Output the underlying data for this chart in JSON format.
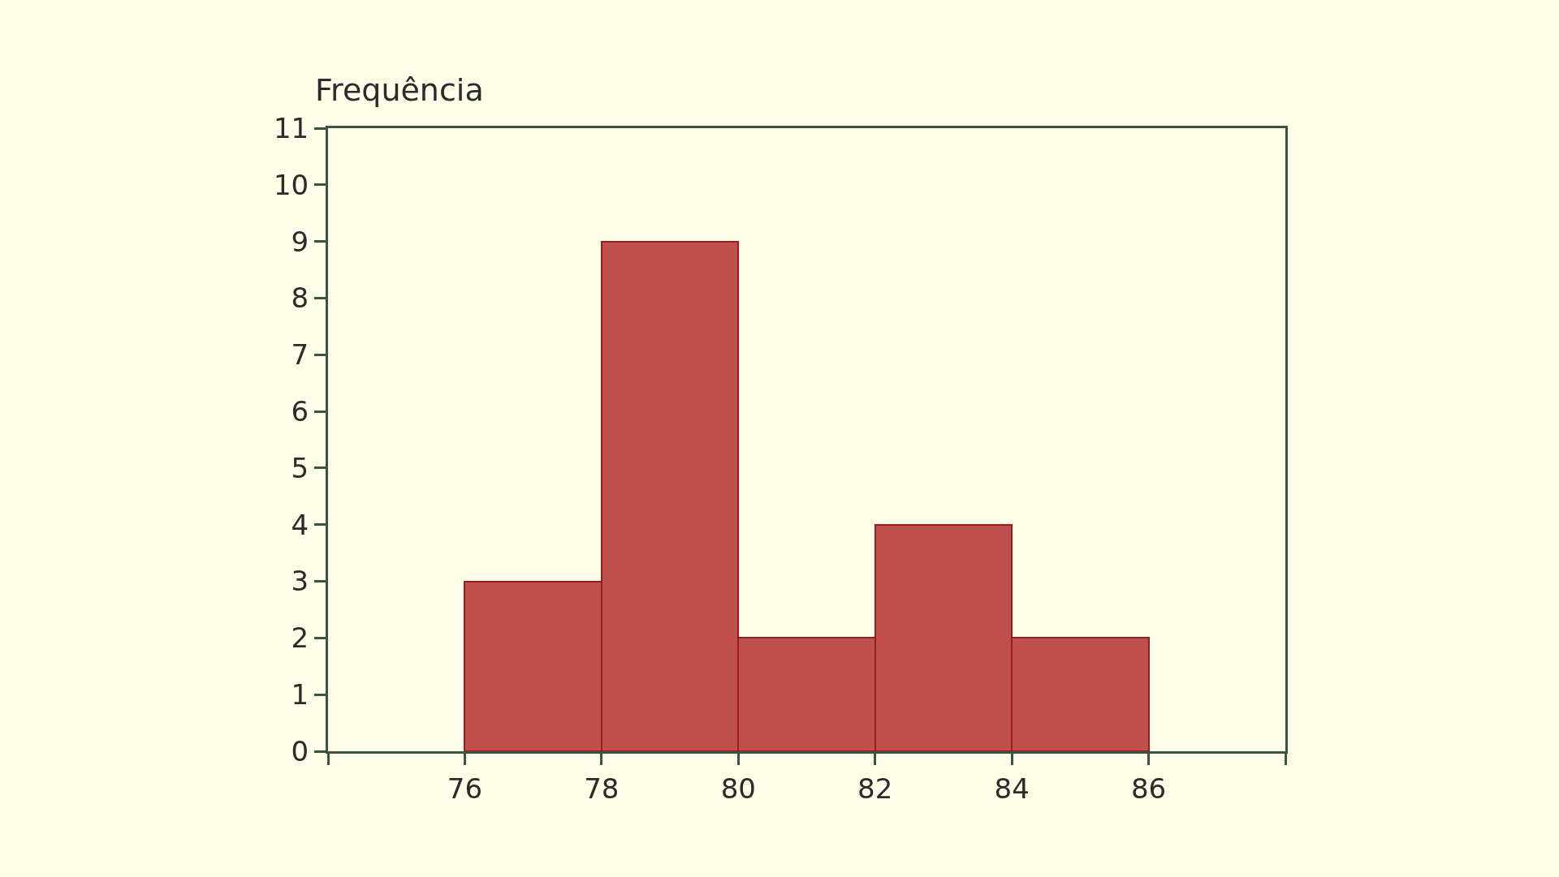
{
  "chart_data": {
    "type": "histogram",
    "ylabel": "Frequência",
    "bins": [
      76,
      78,
      80,
      82,
      84,
      86
    ],
    "values": [
      3,
      9,
      2,
      4,
      2
    ],
    "color": "#c0504d",
    "xlim": [
      74,
      88
    ],
    "xticks": [
      {
        "value": 74,
        "label": null
      },
      76,
      78,
      80,
      82,
      84,
      86,
      {
        "value": 88,
        "label": null
      }
    ],
    "ylim": [
      0,
      11
    ],
    "yticks": [
      0,
      1,
      2,
      3,
      4,
      5,
      6,
      7,
      8,
      9,
      10,
      11
    ],
    "grid": false
  }
}
